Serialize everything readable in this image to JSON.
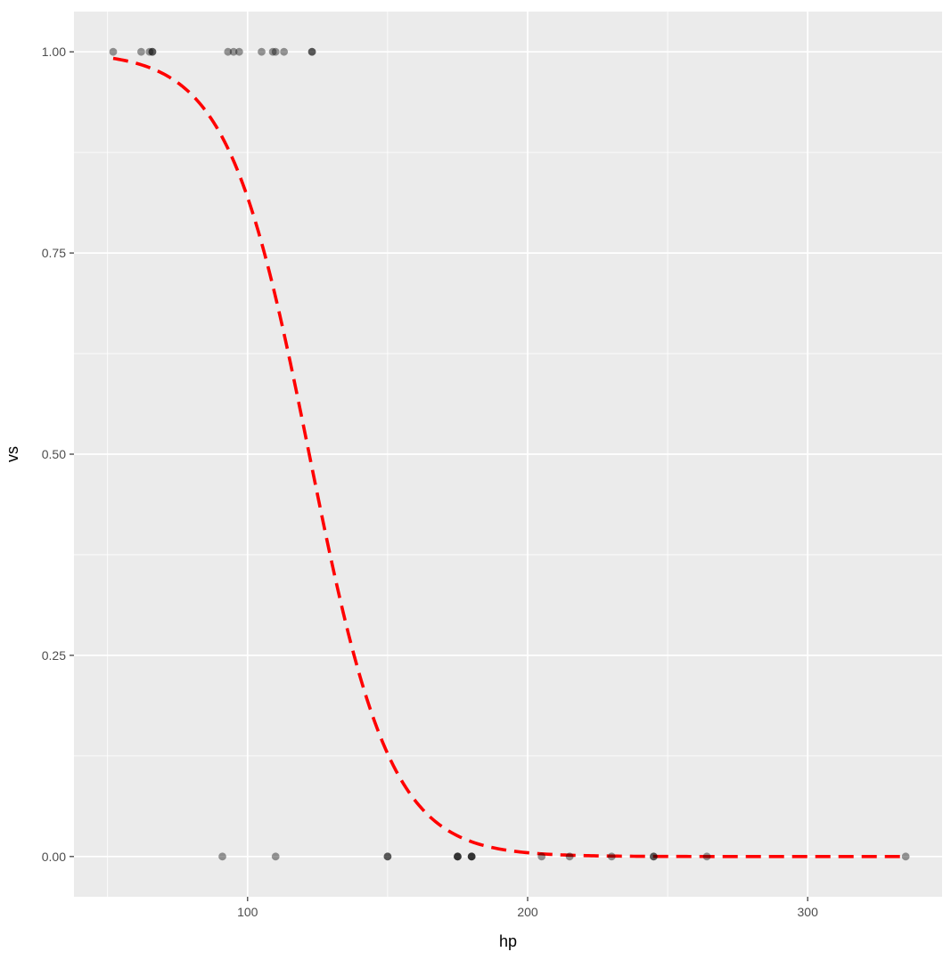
{
  "chart_data": {
    "type": "scatter",
    "title": "",
    "xlabel": "hp",
    "ylabel": "vs",
    "xlim": [
      38,
      348
    ],
    "ylim": [
      -0.05,
      1.05
    ],
    "x_ticks": [
      100,
      200,
      300
    ],
    "x_tick_labels": [
      "100",
      "200",
      "300"
    ],
    "y_ticks": [
      0,
      0.25,
      0.5,
      0.75,
      1
    ],
    "y_tick_labels": [
      "0.00",
      "0.25",
      "0.50",
      "0.75",
      "1.00"
    ],
    "x_minor_ticks": [
      50,
      150,
      250
    ],
    "y_minor_ticks": [
      0.125,
      0.375,
      0.625,
      0.875
    ],
    "grid": true,
    "legend": "none",
    "panel_color": "#ebebeb",
    "grid_color": "#ffffff",
    "point_color": "#000000",
    "point_opacity": 0.4,
    "points": [
      {
        "x": 52,
        "y": 1
      },
      {
        "x": 62,
        "y": 1
      },
      {
        "x": 65,
        "y": 1
      },
      {
        "x": 66,
        "y": 1
      },
      {
        "x": 66,
        "y": 1
      },
      {
        "x": 93,
        "y": 1
      },
      {
        "x": 95,
        "y": 1
      },
      {
        "x": 97,
        "y": 1
      },
      {
        "x": 105,
        "y": 1
      },
      {
        "x": 109,
        "y": 1
      },
      {
        "x": 110,
        "y": 1
      },
      {
        "x": 113,
        "y": 1
      },
      {
        "x": 123,
        "y": 1
      },
      {
        "x": 123,
        "y": 1
      },
      {
        "x": 91,
        "y": 0
      },
      {
        "x": 110,
        "y": 0
      },
      {
        "x": 150,
        "y": 0
      },
      {
        "x": 150,
        "y": 0
      },
      {
        "x": 175,
        "y": 0
      },
      {
        "x": 175,
        "y": 0
      },
      {
        "x": 175,
        "y": 0
      },
      {
        "x": 180,
        "y": 0
      },
      {
        "x": 180,
        "y": 0
      },
      {
        "x": 180,
        "y": 0
      },
      {
        "x": 205,
        "y": 0
      },
      {
        "x": 215,
        "y": 0
      },
      {
        "x": 230,
        "y": 0
      },
      {
        "x": 245,
        "y": 0
      },
      {
        "x": 245,
        "y": 0
      },
      {
        "x": 264,
        "y": 0
      },
      {
        "x": 335,
        "y": 0
      }
    ],
    "fit_line": {
      "type": "logistic",
      "color": "#ff0000",
      "linetype": "dashed",
      "intercept": 8.37,
      "slope": -0.0686,
      "x_range": [
        52,
        335
      ]
    }
  }
}
